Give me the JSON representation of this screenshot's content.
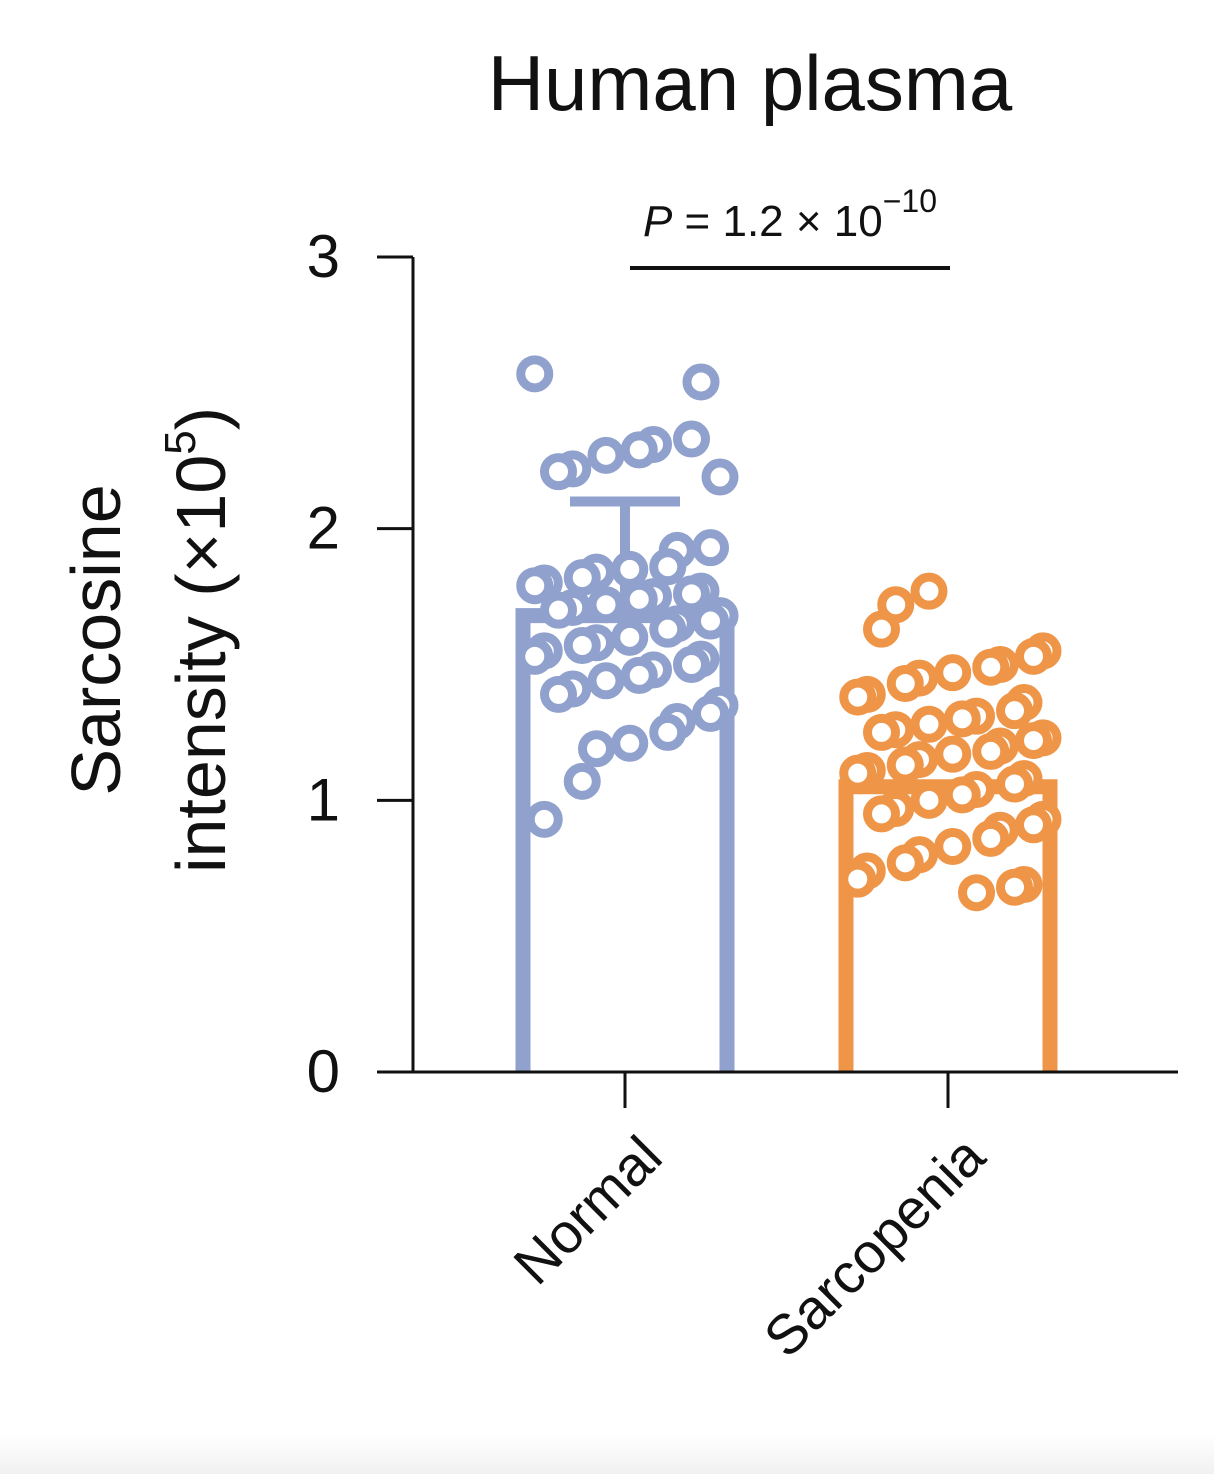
{
  "chart_data": {
    "type": "bar",
    "title": "Human plasma",
    "ylabel": "Sarcosine intensity (×10⁵)",
    "ylabel_line1": "Sarcosine",
    "ylabel_line2": "intensity (×10",
    "ylabel_exp": "5",
    "ylabel_close": ")",
    "xlabel": "",
    "ylim": [
      0,
      3
    ],
    "yticks": [
      "0",
      "1",
      "2",
      "3"
    ],
    "categories": [
      "Normal",
      "Sarcopenia"
    ],
    "bar_values": [
      1.68,
      1.05
    ],
    "error_top": [
      2.1,
      null
    ],
    "colors": {
      "Normal": "#8fa1cc",
      "Sarcopenia": "#ef9548"
    },
    "annotation": {
      "p_symbol": "P",
      "p_text": " = 1.2 × 10",
      "p_exp": "−10"
    },
    "points": {
      "Normal": [
        2.57,
        2.54,
        2.33,
        2.31,
        2.29,
        2.27,
        2.22,
        2.21,
        2.19,
        1.93,
        1.92,
        1.86,
        1.85,
        1.84,
        1.82,
        1.8,
        1.79,
        1.77,
        1.76,
        1.75,
        1.74,
        1.72,
        1.71,
        1.7,
        1.68,
        1.66,
        1.65,
        1.63,
        1.6,
        1.58,
        1.57,
        1.55,
        1.53,
        1.52,
        1.5,
        1.48,
        1.46,
        1.44,
        1.41,
        1.39,
        1.35,
        1.32,
        1.29,
        1.25,
        1.21,
        1.19,
        1.07,
        0.93
      ],
      "Sarcopenia": [
        1.77,
        1.72,
        1.63,
        1.55,
        1.53,
        1.5,
        1.49,
        1.47,
        1.45,
        1.43,
        1.39,
        1.38,
        1.36,
        1.33,
        1.31,
        1.3,
        1.28,
        1.26,
        1.25,
        1.23,
        1.22,
        1.2,
        1.18,
        1.17,
        1.15,
        1.13,
        1.11,
        1.1,
        1.08,
        1.06,
        1.04,
        1.02,
        1.0,
        0.97,
        0.95,
        0.93,
        0.91,
        0.89,
        0.86,
        0.83,
        0.8,
        0.77,
        0.74,
        0.71,
        0.69,
        0.68,
        0.66
      ]
    }
  }
}
